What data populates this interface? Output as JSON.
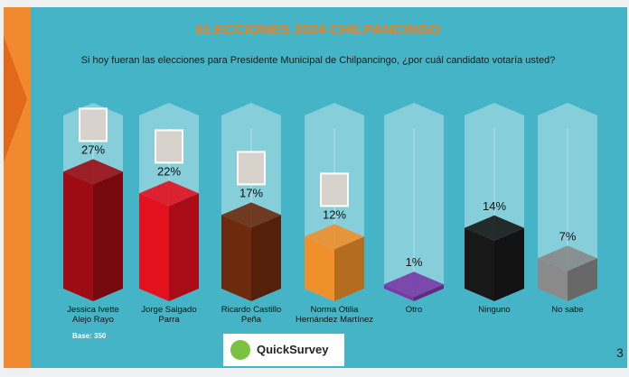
{
  "chart_data": {
    "type": "bar3d",
    "title": "ELECCIONES 2024 CHILPANCINGO",
    "subtitle": "Si hoy fueran las elecciones para Presidente Municipal de Chilpancingo, ¿por cuál candidato votaría usted?",
    "categories": [
      "Jessica Ivette\nAlejo Rayo",
      "Jorge Salgado\nParra",
      "Ricardo Castillo\nPeña",
      "Norma Otilia\nHernández Martínez",
      "Otro",
      "Ninguno",
      "No sabe"
    ],
    "values": [
      27,
      22,
      17,
      12,
      1,
      14,
      7
    ],
    "value_labels": [
      "27%",
      "22%",
      "17%",
      "12%",
      "1%",
      "14%",
      "7%"
    ],
    "colors": [
      "#9c0c12",
      "#e3101e",
      "#6e2a0c",
      "#f0902a",
      "#7a3aa6",
      "#181818",
      "#8a8a8a"
    ],
    "base_note": "Base: 350",
    "logo": "QuickSurvey",
    "page_number": "3"
  }
}
